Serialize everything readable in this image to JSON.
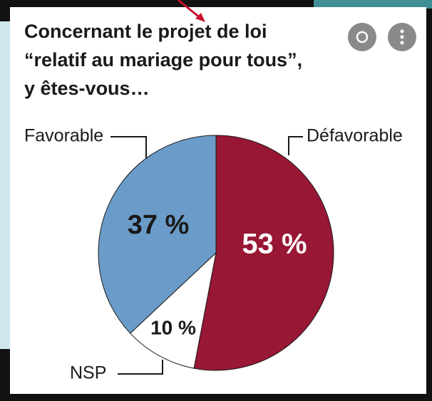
{
  "chart_data": {
    "type": "pie",
    "title_lines": [
      "Concernant le projet de loi",
      "“relatif au mariage pour tous”,",
      "y êtes-vous…"
    ],
    "categories": [
      "Défavorable",
      "NSP",
      "Favorable"
    ],
    "values": [
      53,
      10,
      37
    ],
    "value_labels": [
      "53 %",
      "10 %",
      "37 %"
    ],
    "colors": [
      "#971734",
      "#ffffff",
      "#6b9cc9"
    ]
  }
}
